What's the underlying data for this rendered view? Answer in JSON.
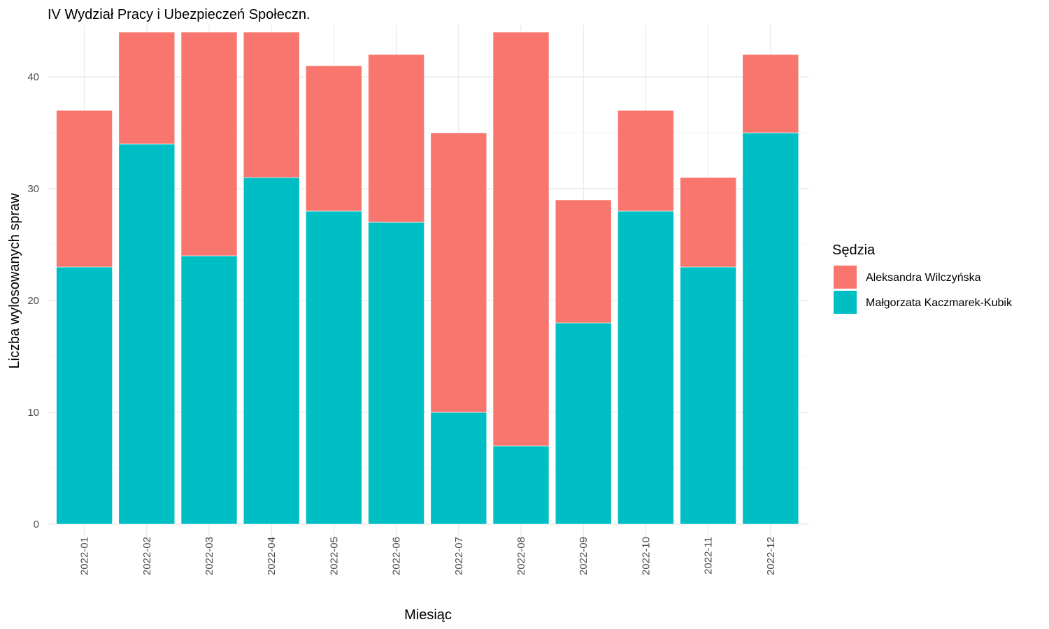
{
  "chart_data": {
    "type": "bar",
    "stacked": true,
    "title": "IV Wydział Pracy i Ubezpieczeń Społeczn.",
    "xlabel": "Miesiąc",
    "ylabel": "Liczba wylosowanych spraw",
    "categories": [
      "2022-01",
      "2022-02",
      "2022-03",
      "2022-04",
      "2022-05",
      "2022-06",
      "2022-07",
      "2022-08",
      "2022-09",
      "2022-10",
      "2022-11",
      "2022-12"
    ],
    "series": [
      {
        "name": "Małgorzata Kaczmarek-Kubik",
        "color": "#00BFC4",
        "values": [
          23,
          34,
          24,
          31,
          28,
          27,
          10,
          7,
          18,
          28,
          23,
          35
        ]
      },
      {
        "name": "Aleksandra Wilczyńska",
        "color": "#F8766D",
        "values": [
          14,
          10,
          20,
          13,
          13,
          15,
          25,
          37,
          11,
          9,
          8,
          7
        ]
      }
    ],
    "ylim": [
      0,
      44
    ],
    "yticks": [
      0,
      10,
      20,
      30,
      40
    ],
    "grid": true,
    "legend": {
      "title": "Sędzia",
      "placement": "right",
      "entries": [
        {
          "label": "Aleksandra Wilczyńska",
          "color": "#F8766D"
        },
        {
          "label": "Małgorzata Kaczmarek-Kubik",
          "color": "#00BFC4"
        }
      ]
    }
  }
}
